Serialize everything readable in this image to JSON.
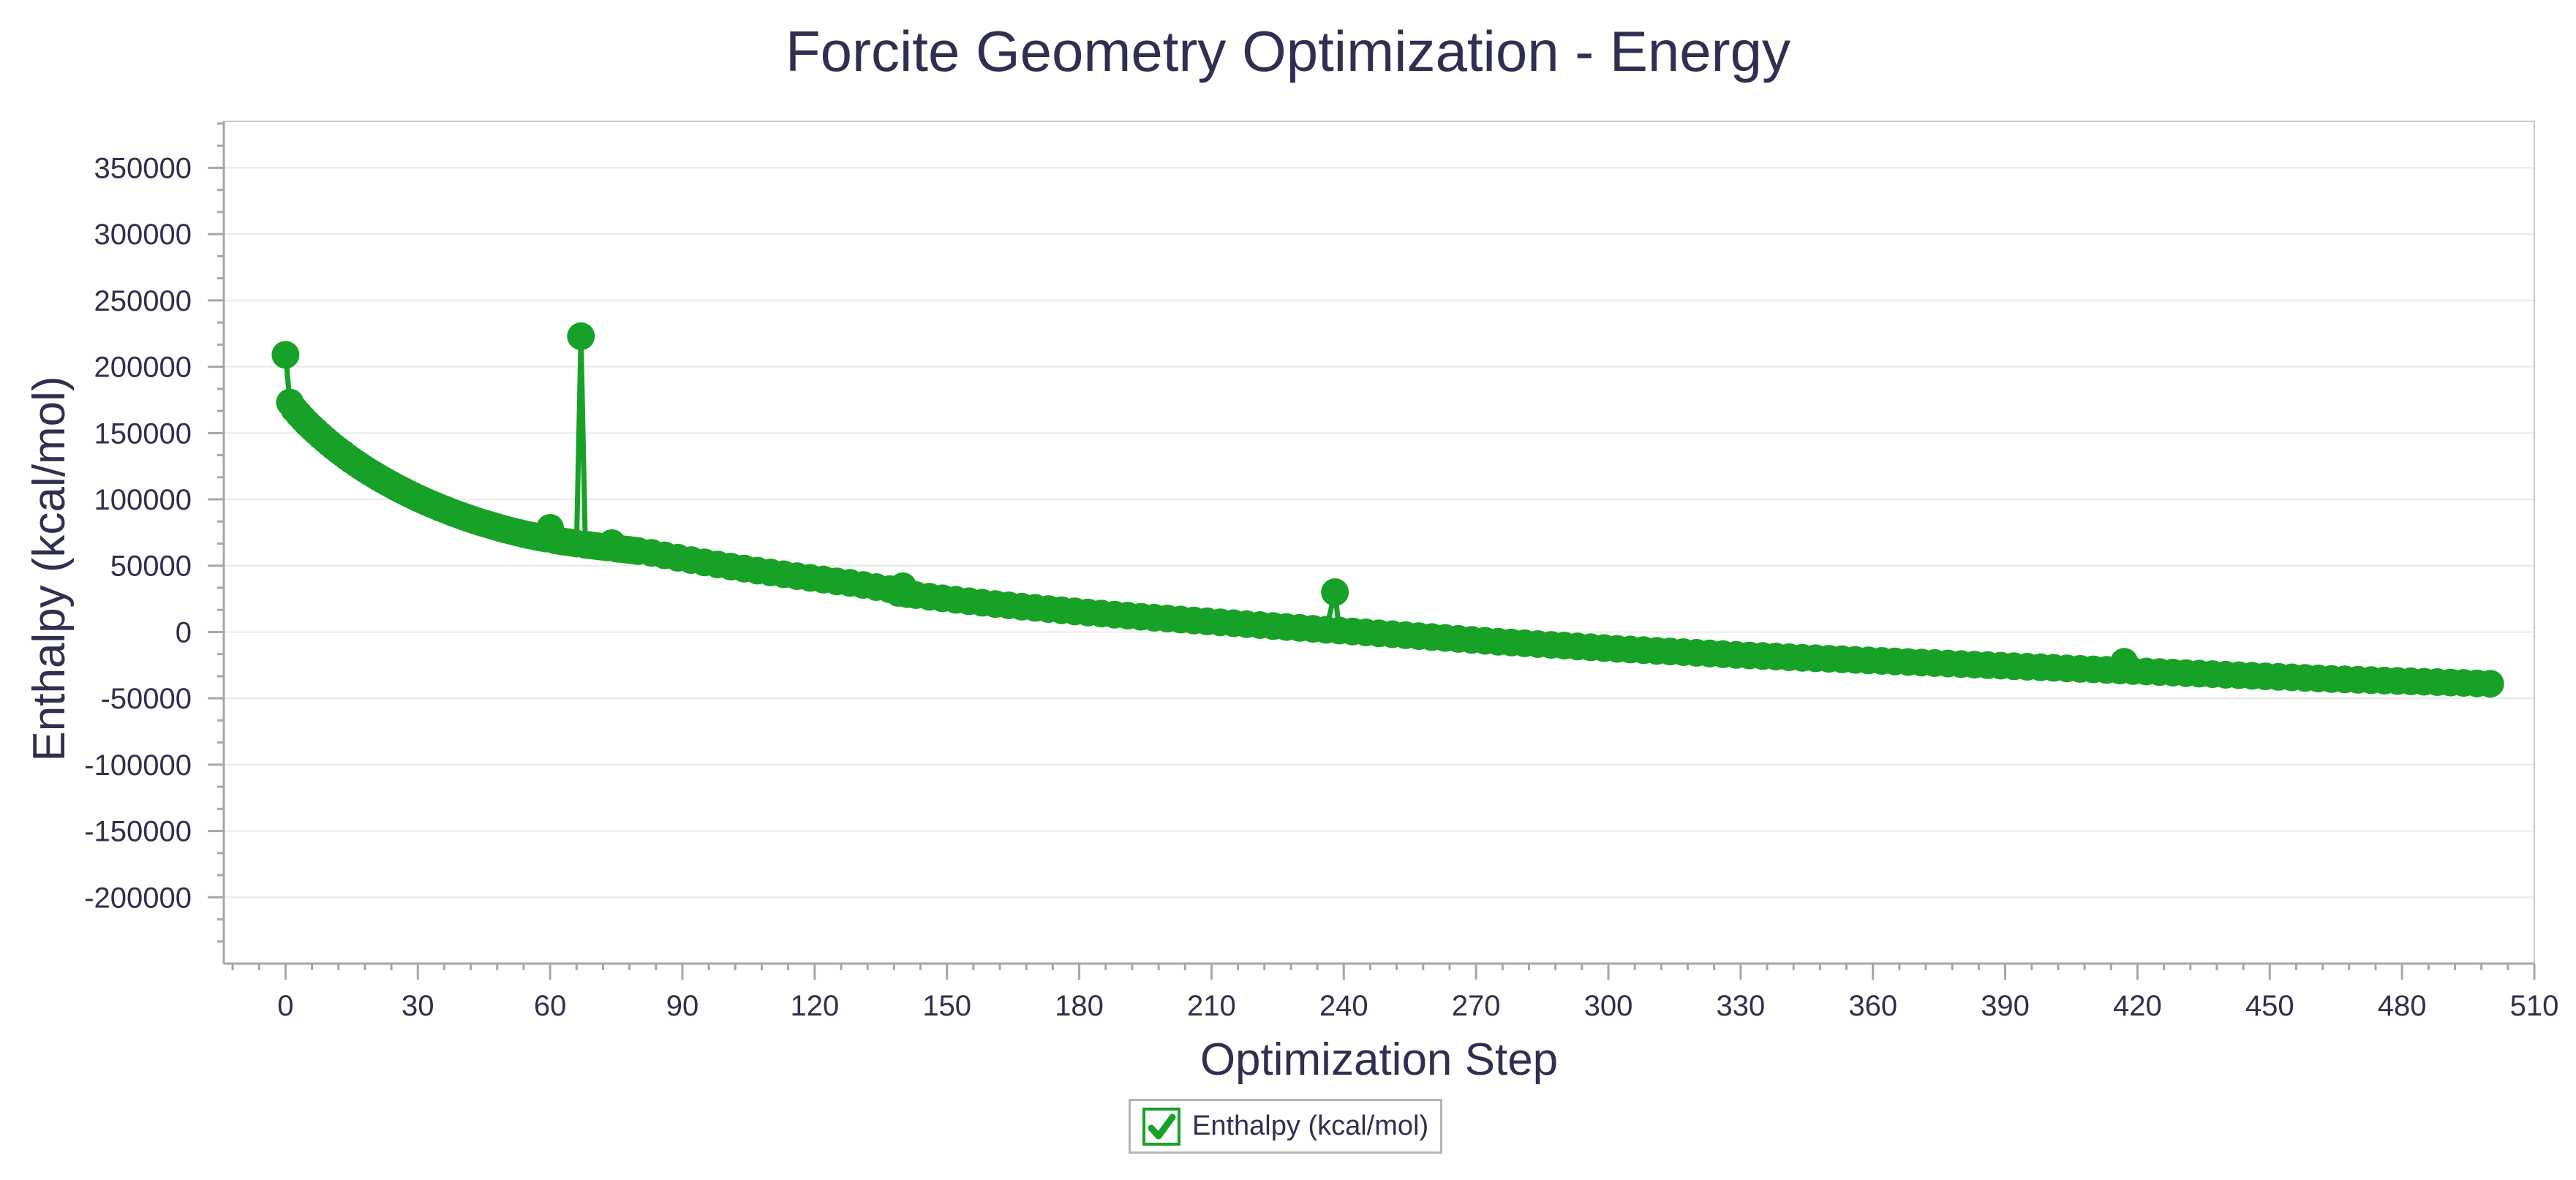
{
  "title": {
    "text": "Forcite Geometry Optimization - Energy"
  },
  "axes": {
    "x": {
      "title": "Optimization Step",
      "tick_labels": [
        "0",
        "30",
        "60",
        "90",
        "120",
        "150",
        "180",
        "210",
        "240",
        "270",
        "300",
        "330",
        "360",
        "390",
        "420",
        "450",
        "480",
        "510"
      ],
      "major_tick_step": 30,
      "minor_tick_step": 6
    },
    "y": {
      "title": "Enthalpy (kcal/mol)",
      "tick_labels": [
        "350000",
        "300000",
        "250000",
        "200000",
        "150000",
        "100000",
        "50000",
        "0",
        "-50000",
        "-100000",
        "-150000",
        "-200000"
      ],
      "major_tick_step": 50000,
      "minor_ticks_per_major": 2
    }
  },
  "legend": {
    "items": [
      {
        "label": "Enthalpy (kcal/mol)",
        "checked": true,
        "color": "#18a127"
      }
    ]
  },
  "colors": {
    "series_green": "#18a127",
    "text_navy": "#2f2f4f",
    "axis_gray": "#a6a6a6",
    "plot_border_gray": "#c8c8c8",
    "gridline_gray": "#e9e9e9",
    "legend_border_gray": "#b4b4b4",
    "background": "#ffffff"
  },
  "chart_data": {
    "type": "line",
    "title": "Forcite Geometry Optimization - Energy",
    "xlabel": "Optimization Step",
    "ylabel": "Enthalpy (kcal/mol)",
    "xlim": [
      -14,
      510
    ],
    "ylim": [
      -250000,
      385000
    ],
    "x_major_ticks": [
      0,
      30,
      60,
      90,
      120,
      150,
      180,
      210,
      240,
      270,
      300,
      330,
      360,
      390,
      420,
      450,
      480,
      510
    ],
    "y_major_ticks": [
      350000,
      300000,
      250000,
      200000,
      150000,
      100000,
      50000,
      0,
      -50000,
      -100000,
      -150000,
      -200000
    ],
    "grid": "horizontal-only",
    "legend_position": "bottom-center",
    "marker": "filled-circle",
    "notable_points": {
      "spikes": [
        [
          67,
          223000
        ],
        [
          238,
          30000
        ]
      ],
      "raised_points": [
        [
          60,
          78500
        ],
        [
          74,
          67000
        ],
        [
          140,
          34500
        ],
        [
          417,
          -22500
        ]
      ]
    },
    "series": [
      {
        "name": "Enthalpy (kcal/mol)",
        "color": "#18a127",
        "points": [
          [
            0,
            209000
          ],
          [
            1,
            173000
          ],
          [
            2,
            168000
          ],
          [
            3,
            164200
          ],
          [
            4,
            160600
          ],
          [
            5,
            157200
          ],
          [
            6,
            154000
          ],
          [
            7,
            150900
          ],
          [
            8,
            147900
          ],
          [
            9,
            145000
          ],
          [
            10,
            142200
          ],
          [
            11,
            139500
          ],
          [
            12,
            136900
          ],
          [
            13,
            134400
          ],
          [
            14,
            131900
          ],
          [
            15,
            129500
          ],
          [
            16,
            127200
          ],
          [
            17,
            125000
          ],
          [
            18,
            122800
          ],
          [
            19,
            120700
          ],
          [
            20,
            118700
          ],
          [
            21,
            116700
          ],
          [
            22,
            114800
          ],
          [
            23,
            112900
          ],
          [
            24,
            111100
          ],
          [
            25,
            109300
          ],
          [
            26,
            107600
          ],
          [
            27,
            105900
          ],
          [
            28,
            104200
          ],
          [
            29,
            102600
          ],
          [
            30,
            101000
          ],
          [
            31,
            99500
          ],
          [
            32,
            98000
          ],
          [
            33,
            96600
          ],
          [
            34,
            95200
          ],
          [
            35,
            93800
          ],
          [
            36,
            92500
          ],
          [
            37,
            91200
          ],
          [
            38,
            89900
          ],
          [
            39,
            88700
          ],
          [
            40,
            87500
          ],
          [
            41,
            86300
          ],
          [
            42,
            85200
          ],
          [
            43,
            84100
          ],
          [
            44,
            83000
          ],
          [
            45,
            82000
          ],
          [
            46,
            81000
          ],
          [
            47,
            80000
          ],
          [
            48,
            79000
          ],
          [
            49,
            78100
          ],
          [
            50,
            77200
          ],
          [
            51,
            76300
          ],
          [
            52,
            75500
          ],
          [
            53,
            74700
          ],
          [
            54,
            73900
          ],
          [
            55,
            73200
          ],
          [
            56,
            72500
          ],
          [
            57,
            71800
          ],
          [
            58,
            71100
          ],
          [
            59,
            70500
          ],
          [
            60,
            78500
          ],
          [
            61,
            69300
          ],
          [
            62,
            68700
          ],
          [
            63,
            68200
          ],
          [
            64,
            67700
          ],
          [
            65,
            67200
          ],
          [
            66,
            66700
          ],
          [
            67,
            223000
          ],
          [
            68,
            65800
          ],
          [
            69,
            65400
          ],
          [
            70,
            65000
          ],
          [
            71,
            64600
          ],
          [
            72,
            64200
          ],
          [
            73,
            63800
          ],
          [
            74,
            67000
          ],
          [
            75,
            63000
          ],
          [
            76,
            62600
          ],
          [
            77,
            62200
          ],
          [
            78,
            61800
          ],
          [
            79,
            61400
          ],
          [
            80,
            61000
          ],
          [
            83,
            59700
          ],
          [
            86,
            57800
          ],
          [
            89,
            56000
          ],
          [
            92,
            54200
          ],
          [
            95,
            52500
          ],
          [
            98,
            50900
          ],
          [
            101,
            49300
          ],
          [
            104,
            47800
          ],
          [
            107,
            46300
          ],
          [
            110,
            44900
          ],
          [
            113,
            43500
          ],
          [
            116,
            42100
          ],
          [
            119,
            40800
          ],
          [
            122,
            39500
          ],
          [
            125,
            38200
          ],
          [
            128,
            37000
          ],
          [
            131,
            35500
          ],
          [
            134,
            33900
          ],
          [
            137,
            32300
          ],
          [
            139,
            29500
          ],
          [
            140,
            34500
          ],
          [
            141,
            28600
          ],
          [
            143,
            27800
          ],
          [
            146,
            26600
          ],
          [
            149,
            25400
          ],
          [
            152,
            24300
          ],
          [
            155,
            23200
          ],
          [
            158,
            22100
          ],
          [
            161,
            21100
          ],
          [
            164,
            20100
          ],
          [
            167,
            19100
          ],
          [
            170,
            18200
          ],
          [
            173,
            17300
          ],
          [
            176,
            16400
          ],
          [
            179,
            15500
          ],
          [
            182,
            14700
          ],
          [
            185,
            13900
          ],
          [
            188,
            13100
          ],
          [
            191,
            12300
          ],
          [
            194,
            11500
          ],
          [
            197,
            10800
          ],
          [
            200,
            10100
          ],
          [
            203,
            9400
          ],
          [
            206,
            8700
          ],
          [
            209,
            8000
          ],
          [
            212,
            7300
          ],
          [
            215,
            6600
          ],
          [
            218,
            5900
          ],
          [
            221,
            5200
          ],
          [
            224,
            4500
          ],
          [
            227,
            3800
          ],
          [
            230,
            3100
          ],
          [
            233,
            2400
          ],
          [
            236,
            1700
          ],
          [
            238,
            30000
          ],
          [
            239,
            1100
          ],
          [
            242,
            400
          ],
          [
            245,
            -300
          ],
          [
            248,
            -1000
          ],
          [
            251,
            -1700
          ],
          [
            254,
            -2400
          ],
          [
            257,
            -3100
          ],
          [
            260,
            -3800
          ],
          [
            263,
            -4500
          ],
          [
            266,
            -5200
          ],
          [
            269,
            -5900
          ],
          [
            272,
            -6600
          ],
          [
            275,
            -7300
          ],
          [
            278,
            -7900
          ],
          [
            281,
            -8500
          ],
          [
            284,
            -9100
          ],
          [
            287,
            -9700
          ],
          [
            290,
            -10300
          ],
          [
            293,
            -10900
          ],
          [
            296,
            -11500
          ],
          [
            299,
            -12100
          ],
          [
            302,
            -12700
          ],
          [
            305,
            -13200
          ],
          [
            308,
            -13700
          ],
          [
            311,
            -14200
          ],
          [
            314,
            -14700
          ],
          [
            317,
            -15200
          ],
          [
            320,
            -15700
          ],
          [
            323,
            -16200
          ],
          [
            326,
            -16700
          ],
          [
            329,
            -17200
          ],
          [
            332,
            -17700
          ],
          [
            335,
            -18100
          ],
          [
            338,
            -18500
          ],
          [
            341,
            -19000
          ],
          [
            344,
            -19400
          ],
          [
            347,
            -19800
          ],
          [
            350,
            -20200
          ],
          [
            353,
            -20600
          ],
          [
            356,
            -21000
          ],
          [
            359,
            -21400
          ],
          [
            362,
            -21800
          ],
          [
            365,
            -22200
          ],
          [
            368,
            -22600
          ],
          [
            371,
            -23000
          ],
          [
            374,
            -23400
          ],
          [
            377,
            -23800
          ],
          [
            380,
            -24200
          ],
          [
            383,
            -24600
          ],
          [
            386,
            -25000
          ],
          [
            389,
            -25400
          ],
          [
            392,
            -25800
          ],
          [
            395,
            -26200
          ],
          [
            398,
            -26600
          ],
          [
            401,
            -27000
          ],
          [
            404,
            -27400
          ],
          [
            407,
            -27800
          ],
          [
            410,
            -28200
          ],
          [
            413,
            -28600
          ],
          [
            416,
            -29000
          ],
          [
            417,
            -22500
          ],
          [
            419,
            -29400
          ],
          [
            422,
            -29800
          ],
          [
            425,
            -30200
          ],
          [
            428,
            -30600
          ],
          [
            431,
            -31000
          ],
          [
            434,
            -31400
          ],
          [
            437,
            -31800
          ],
          [
            440,
            -32200
          ],
          [
            443,
            -32600
          ],
          [
            446,
            -33000
          ],
          [
            449,
            -33400
          ],
          [
            452,
            -33800
          ],
          [
            455,
            -34200
          ],
          [
            458,
            -34600
          ],
          [
            461,
            -35000
          ],
          [
            464,
            -35400
          ],
          [
            467,
            -35700
          ],
          [
            470,
            -36000
          ],
          [
            473,
            -36300
          ],
          [
            476,
            -36600
          ],
          [
            479,
            -36900
          ],
          [
            482,
            -37200
          ],
          [
            485,
            -37500
          ],
          [
            488,
            -37800
          ],
          [
            491,
            -38100
          ],
          [
            494,
            -38400
          ],
          [
            497,
            -38700
          ],
          [
            500,
            -39000
          ]
        ]
      }
    ]
  }
}
